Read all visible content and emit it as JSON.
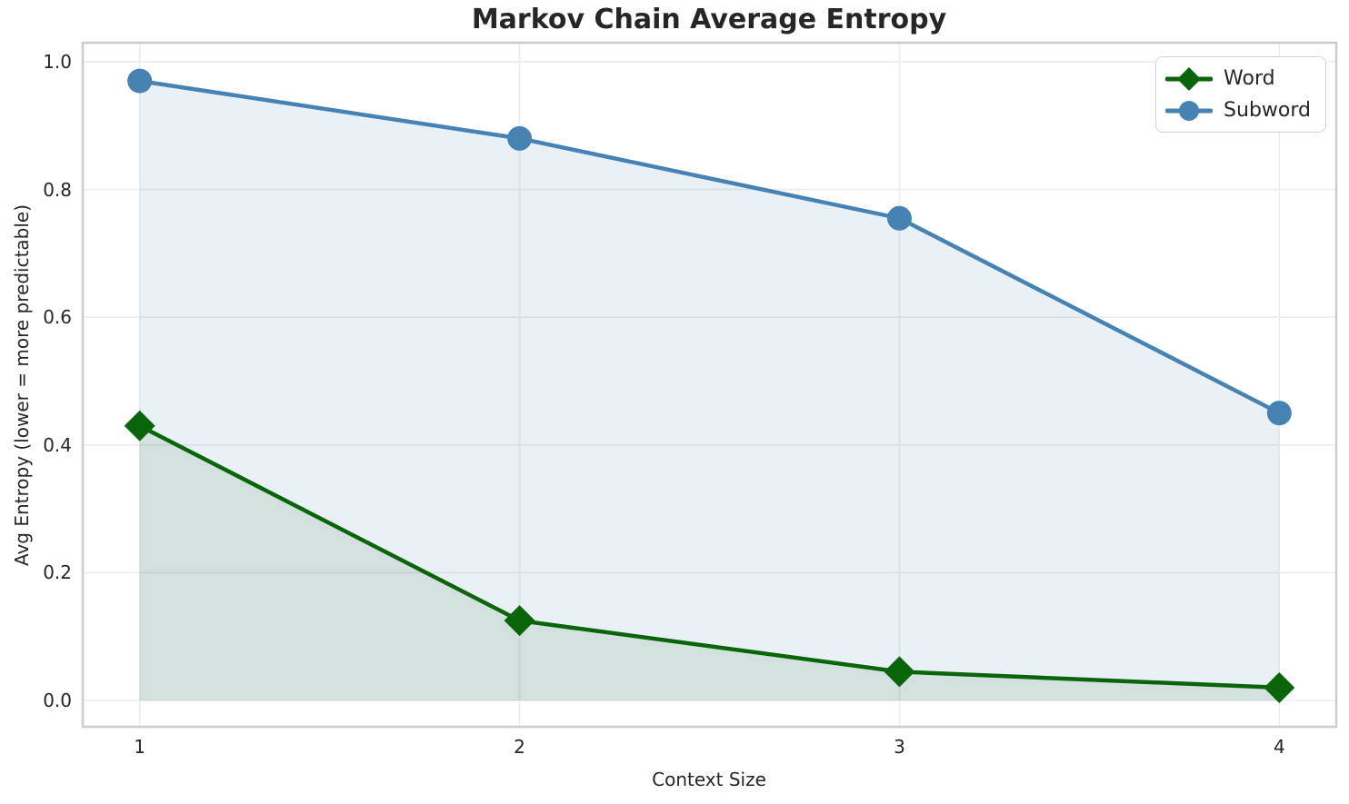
{
  "chart_data": {
    "type": "line",
    "title": "Markov Chain Average Entropy",
    "xlabel": "Context Size",
    "ylabel": "Avg Entropy (lower = more predictable)",
    "x": [
      1,
      2,
      3,
      4
    ],
    "xtick_labels": [
      "1",
      "2",
      "3",
      "4"
    ],
    "yticks": [
      0.0,
      0.2,
      0.4,
      0.6,
      0.8,
      1.0
    ],
    "ytick_labels": [
      "0.0",
      "0.2",
      "0.4",
      "0.6",
      "0.8",
      "1.0"
    ],
    "xlim": [
      0.85,
      4.15
    ],
    "ylim": [
      0,
      1
    ],
    "grid": true,
    "legend_position": "top-right",
    "series": [
      {
        "name": "Word",
        "values": [
          0.43,
          0.125,
          0.045,
          0.02
        ],
        "color": "#0a640a",
        "marker": "diamond",
        "fill_to_zero": true,
        "fill_opacity": 0.1
      },
      {
        "name": "Subword",
        "values": [
          0.97,
          0.88,
          0.755,
          0.45
        ],
        "color": "#4682b4",
        "marker": "circle",
        "fill_to_zero": true,
        "fill_opacity": 0.12
      }
    ],
    "style": {
      "grid_color": "#ececec",
      "spine_color": "#cccccc",
      "text_color": "#262626",
      "line_width": 4.5,
      "marker_radius": 13.5,
      "diamond_half": 17
    }
  }
}
